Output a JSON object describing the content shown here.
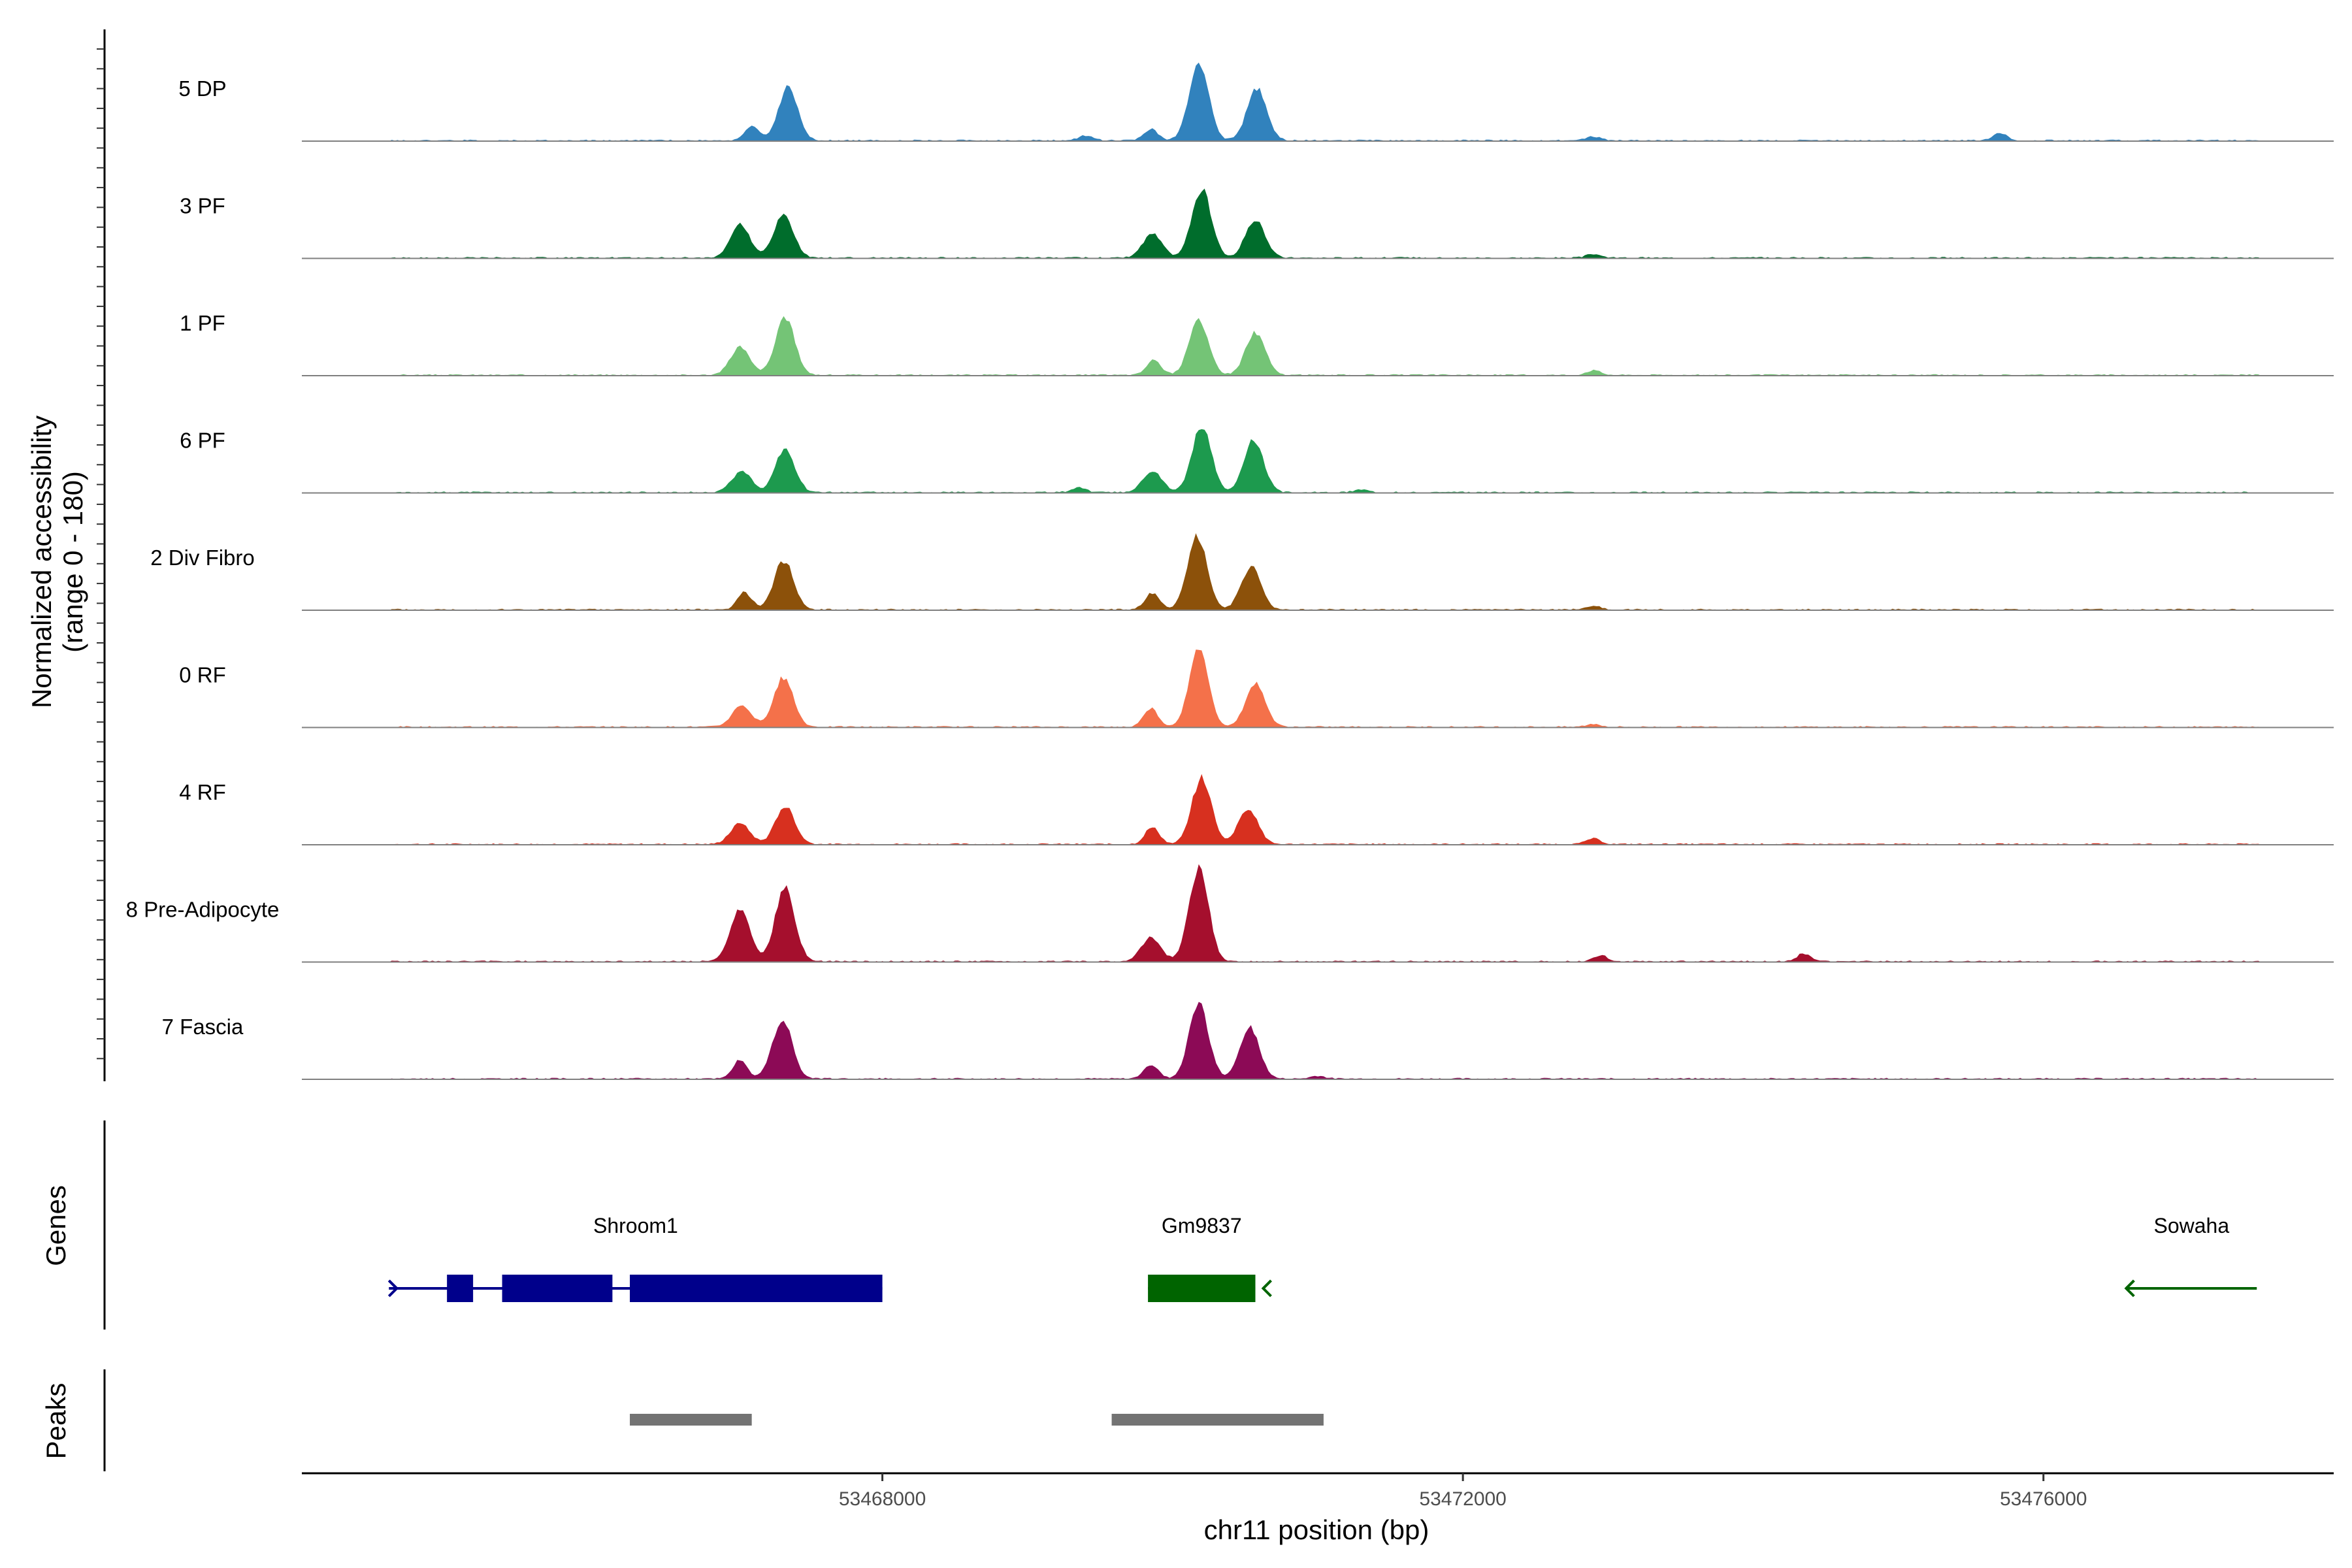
{
  "chart_data": {
    "type": "coverage",
    "title": "",
    "ylabel_line1": "Normalized accessibility",
    "ylabel_line2": "(range 0 - 180)",
    "y_range": [
      0,
      180
    ],
    "xlabel": "chr11 position (bp)",
    "xlim": [
      53464000,
      53478000
    ],
    "x_ticks": [
      {
        "value": 53468000,
        "label": "53468000"
      },
      {
        "value": 53472000,
        "label": "53472000"
      },
      {
        "value": 53476000,
        "label": "53476000"
      }
    ],
    "peak_centers": [
      53467100,
      53467400,
      53469850,
      53470200,
      53470550,
      53469300,
      53472900,
      53474300,
      53475700
    ],
    "tracks": [
      {
        "name": "5 DP",
        "color": "#3182bd",
        "peaks": [
          [
            53467100,
            15
          ],
          [
            53467350,
            55
          ],
          [
            53469400,
            5
          ],
          [
            53469850,
            12
          ],
          [
            53470180,
            82
          ],
          [
            53470580,
            55
          ],
          [
            53472900,
            4
          ],
          [
            53475700,
            8
          ]
        ]
      },
      {
        "name": "3 PF",
        "color": "#006d2c",
        "peaks": [
          [
            53467020,
            35
          ],
          [
            53467320,
            45
          ],
          [
            53469860,
            25
          ],
          [
            53470200,
            72
          ],
          [
            53470570,
            40
          ],
          [
            53472900,
            4
          ]
        ]
      },
      {
        "name": "1 PF",
        "color": "#74c476",
        "peaks": [
          [
            53467020,
            30
          ],
          [
            53467330,
            60
          ],
          [
            53469870,
            16
          ],
          [
            53470180,
            58
          ],
          [
            53470570,
            45
          ],
          [
            53472900,
            5
          ]
        ]
      },
      {
        "name": "6 PF",
        "color": "#1d9a4e",
        "peaks": [
          [
            53467030,
            22
          ],
          [
            53467330,
            45
          ],
          [
            53469860,
            22
          ],
          [
            53470200,
            70
          ],
          [
            53470560,
            55
          ],
          [
            53469350,
            5
          ],
          [
            53471300,
            3
          ]
        ]
      },
      {
        "name": "2 Div Fibro",
        "color": "#8c510a",
        "peaks": [
          [
            53467050,
            18
          ],
          [
            53467320,
            52
          ],
          [
            53469860,
            18
          ],
          [
            53470170,
            78
          ],
          [
            53470540,
            45
          ],
          [
            53472900,
            4
          ]
        ]
      },
      {
        "name": "0 RF",
        "color": "#f4714a",
        "peaks": [
          [
            53467030,
            22
          ],
          [
            53467320,
            52
          ],
          [
            53469850,
            20
          ],
          [
            53470180,
            80
          ],
          [
            53470570,
            45
          ],
          [
            53472900,
            3
          ]
        ]
      },
      {
        "name": "4 RF",
        "color": "#d7301f",
        "peaks": [
          [
            53467020,
            22
          ],
          [
            53467330,
            40
          ],
          [
            53469860,
            18
          ],
          [
            53470200,
            70
          ],
          [
            53470520,
            38
          ],
          [
            53472900,
            6
          ]
        ]
      },
      {
        "name": "8 Pre-Adipocyte",
        "color": "#a50f2d",
        "peaks": [
          [
            53467020,
            55
          ],
          [
            53467330,
            78
          ],
          [
            53469850,
            25
          ],
          [
            53470180,
            98
          ],
          [
            53472950,
            6
          ],
          [
            53474350,
            8
          ]
        ]
      },
      {
        "name": "7 Fascia",
        "color": "#8c0a56",
        "peaks": [
          [
            53467020,
            20
          ],
          [
            53467310,
            62
          ],
          [
            53469850,
            15
          ],
          [
            53470180,
            80
          ],
          [
            53470530,
            55
          ],
          [
            53471000,
            3
          ]
        ]
      }
    ],
    "genes_track_label": "Genes",
    "genes": [
      {
        "name": "Shroom1",
        "start": 53464600,
        "end": 53468000,
        "strand": "+",
        "color": "#00008b",
        "exons": [
          [
            53465000,
            53465180
          ],
          [
            53465380,
            53466140
          ],
          [
            53466260,
            53468000
          ]
        ]
      },
      {
        "name": "Gm9837",
        "start": 53469830,
        "end": 53470570,
        "strand": "-",
        "color": "#006400",
        "exons": [
          [
            53469830,
            53470570
          ]
        ]
      },
      {
        "name": "Sowaha",
        "start": 53476570,
        "end": 53477470,
        "strand": "-",
        "color": "#006400",
        "exons": []
      }
    ],
    "peaks_track_label": "Peaks",
    "peak_regions": [
      [
        53466260,
        53467100
      ],
      [
        53469580,
        53471040
      ]
    ]
  }
}
